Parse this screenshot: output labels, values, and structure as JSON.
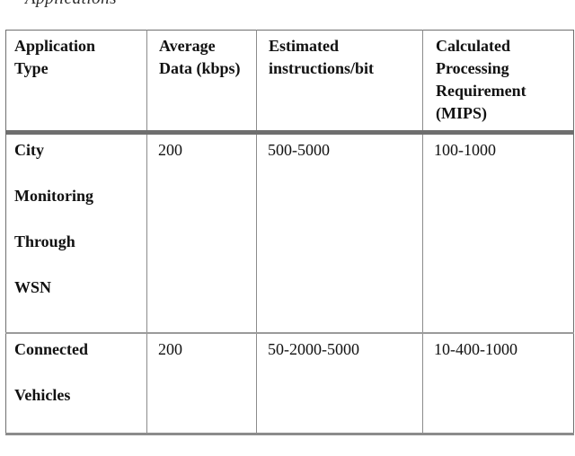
{
  "caption": "Applications",
  "table": {
    "headers": [
      "Application Type",
      "Average Data (kbps)",
      "Estimated instructions/bit",
      "Calculated Processing Requirement (MIPS)"
    ],
    "rows": [
      {
        "application_type": [
          "City",
          "Monitoring",
          "Through",
          "WSN"
        ],
        "average_data": "200",
        "instructions_per_bit": "500-5000",
        "processing_mips": "100-1000"
      },
      {
        "application_type": [
          "Connected",
          "Vehicles"
        ],
        "average_data": "200",
        "instructions_per_bit": "50-2000-5000",
        "processing_mips": "10-400-1000"
      }
    ]
  }
}
